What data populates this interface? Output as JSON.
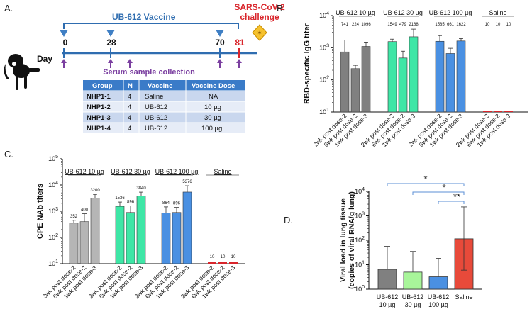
{
  "panelA": {
    "letter": "A.",
    "vaccine_label": "UB-612 Vaccine",
    "challenge_label_1": "SARS-CoV-2",
    "challenge_label_2": "challenge",
    "day_label": "Day",
    "days": [
      "0",
      "28",
      "70",
      "81"
    ],
    "serum_label": "Serum sample collection",
    "table": {
      "headers": [
        "Group",
        "N",
        "Vaccine",
        "Vaccine Dose"
      ],
      "rows": [
        [
          "NHP1-1",
          "4",
          "Saline",
          "NA"
        ],
        [
          "NHP1-2",
          "4",
          "UB-612",
          "10 µg"
        ],
        [
          "NHP1-3",
          "4",
          "UB-612",
          "30 µg"
        ],
        [
          "NHP1-4",
          "4",
          "UB-612",
          "100 µg"
        ]
      ]
    },
    "colors": {
      "accent": "#2f6db0",
      "challenge": "#d9262c",
      "arrow": "#7b3fa0",
      "triangle": "#3f7fc4"
    }
  },
  "chart_data": [
    {
      "panel": "B.",
      "type": "bar",
      "ylabel": "RBD-specific IgG titer",
      "yscale": "log",
      "ylim": [
        10,
        10000
      ],
      "yticks": [
        "10^1",
        "10^2",
        "10^3",
        "10^4"
      ],
      "groups": [
        {
          "name": "UB-612 10 µg",
          "color": "#808080",
          "categories": [
            "2wk post dose-2",
            "6wk post dose-2",
            "1wk post dose-3"
          ],
          "values": [
            741,
            224,
            1096
          ],
          "errors": [
            1000,
            60,
            400
          ],
          "labels": [
            "741",
            "224",
            "1096"
          ]
        },
        {
          "name": "UB-612 30 µg",
          "color": "#3ee6a6",
          "categories": [
            "2wk post dose-2",
            "6wk post dose-2",
            "1wk post dose-3"
          ],
          "values": [
            1549,
            479,
            2188
          ],
          "errors": [
            300,
            300,
            1600
          ],
          "labels": [
            "1549",
            "479",
            "2188"
          ]
        },
        {
          "name": "UB-612 100 µg",
          "color": "#4a90e2",
          "categories": [
            "2wk post dose-2",
            "6wk post dose-2",
            "1wk post dose-3"
          ],
          "values": [
            1585,
            661,
            1622
          ],
          "errors": [
            800,
            300,
            300
          ],
          "labels": [
            "1585",
            "661",
            "1622"
          ]
        },
        {
          "name": "Saline",
          "color": "#d9262c",
          "categories": [
            "2wk post dose-2",
            "6wk post dose-2",
            "1wk post dose-3"
          ],
          "values": [
            10,
            10,
            10
          ],
          "errors": [
            0,
            0,
            0
          ],
          "labels": [
            "10",
            "10",
            "10"
          ]
        }
      ]
    },
    {
      "panel": "C.",
      "type": "bar",
      "ylabel": "CPE NAb titers",
      "yscale": "log",
      "ylim": [
        10,
        100000
      ],
      "yticks": [
        "10^1",
        "10^2",
        "10^3",
        "10^4",
        "10^5"
      ],
      "groups": [
        {
          "name": "UB-612 10 µg",
          "color": "#b5b5b5",
          "categories": [
            "2wk post dose-2",
            "6wk post dose-2",
            "1wk post dose-3"
          ],
          "values": [
            352,
            400,
            3200
          ],
          "errors": [
            100,
            400,
            1200
          ],
          "labels": [
            "352",
            "400",
            "3200"
          ]
        },
        {
          "name": "UB-612 30 µg",
          "color": "#3ee6a6",
          "categories": [
            "2wk post dose-2",
            "6wk post dose-2",
            "1wk post dose-3"
          ],
          "values": [
            1536,
            896,
            3840
          ],
          "errors": [
            700,
            700,
            1500
          ],
          "labels": [
            "1536",
            "896",
            "3840"
          ]
        },
        {
          "name": "UB-612 100 µg",
          "color": "#4a90e2",
          "categories": [
            "2wk post dose-2",
            "6wk post dose-2",
            "1wk post dose-3"
          ],
          "values": [
            864,
            896,
            5376
          ],
          "errors": [
            600,
            500,
            4000
          ],
          "labels": [
            "864",
            "896",
            "5376"
          ]
        },
        {
          "name": "Saline",
          "color": "#d9262c",
          "categories": [
            "2wk post dose-2",
            "6wk post dose-2",
            "1wk post dose-3"
          ],
          "values": [
            10,
            10,
            10
          ],
          "errors": [
            0,
            0,
            0
          ],
          "labels": [
            "10",
            "10",
            "10"
          ]
        }
      ]
    },
    {
      "panel": "D.",
      "type": "bar",
      "ylabel_1": "Viral load in lung tissue",
      "ylabel_2": "(copies of viral RNA/g lung)",
      "yscale": "log",
      "ylim": [
        1,
        10000
      ],
      "yticks": [
        "10^0",
        "10^1",
        "10^2",
        "10^3",
        "10^4"
      ],
      "categories": [
        [
          "UB-612",
          "10 µg"
        ],
        [
          "UB-612",
          "30 µg"
        ],
        [
          "UB-612",
          "100 µg"
        ],
        [
          "Saline",
          ""
        ]
      ],
      "values": [
        6.5,
        5,
        3.2,
        115
      ],
      "errors": [
        50,
        30,
        15,
        2200
      ],
      "lower_errors": [
        null,
        null,
        null,
        6
      ],
      "colors": [
        "#808080",
        "#a8f59a",
        "#4a90e2",
        "#e84a3a"
      ],
      "significance": [
        {
          "from": 0,
          "to": 3,
          "label": "*"
        },
        {
          "from": 1,
          "to": 3,
          "label": "*"
        },
        {
          "from": 2,
          "to": 3,
          "label": "**"
        }
      ]
    }
  ]
}
